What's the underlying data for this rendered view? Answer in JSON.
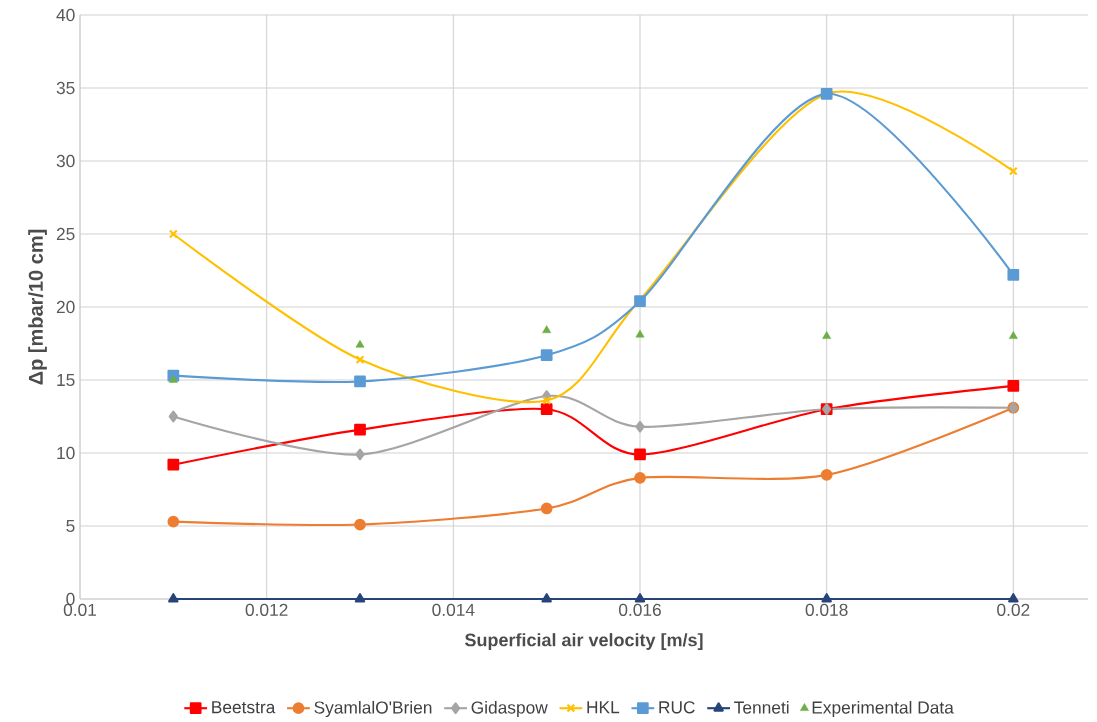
{
  "chart_data": {
    "type": "line",
    "xlabel": "Superficial air velocity [m/s]",
    "ylabel": "Δp [mbar/10 cm]",
    "x": [
      0.011,
      0.013,
      0.015,
      0.016,
      0.018,
      0.02
    ],
    "xlim": [
      0.01,
      0.0208
    ],
    "xticks": [
      0.01,
      0.012,
      0.014,
      0.016,
      0.018,
      0.02
    ],
    "ylim": [
      0,
      40
    ],
    "yticks": [
      0,
      5,
      10,
      15,
      20,
      25,
      30,
      35,
      40
    ],
    "grid": true,
    "legend": "bottom",
    "line_style": "solid",
    "series": [
      {
        "name": "Beetstra",
        "color": "#ff0000",
        "marker": "square",
        "values": [
          9.2,
          11.6,
          13.0,
          9.9,
          13.0,
          14.6
        ]
      },
      {
        "name": "SyamlalO'Brien",
        "color": "#ed7d31",
        "marker": "circle",
        "values": [
          5.3,
          5.1,
          6.2,
          8.3,
          8.5,
          13.1
        ]
      },
      {
        "name": "Gidaspow",
        "color": "#a5a5a5",
        "marker": "diamond",
        "values": [
          12.5,
          9.9,
          13.9,
          11.8,
          13.0,
          13.1
        ]
      },
      {
        "name": "HKL",
        "color": "#ffc000",
        "marker": "cross",
        "values": [
          25.0,
          16.4,
          13.6,
          20.5,
          34.6,
          29.3
        ]
      },
      {
        "name": "RUC",
        "color": "#5b9bd5",
        "marker": "square",
        "values": [
          15.3,
          14.9,
          16.7,
          20.4,
          34.6,
          22.2
        ]
      },
      {
        "name": "Tenneti",
        "color": "#264478",
        "marker": "triangle",
        "values": [
          0,
          0,
          0,
          0,
          0,
          0
        ]
      },
      {
        "name": "Experimental Data",
        "type": "scatter",
        "color": "#70ad47",
        "marker": "triangle",
        "values": [
          15.0,
          17.4,
          18.4,
          18.1,
          18.0,
          18.0
        ]
      }
    ]
  }
}
